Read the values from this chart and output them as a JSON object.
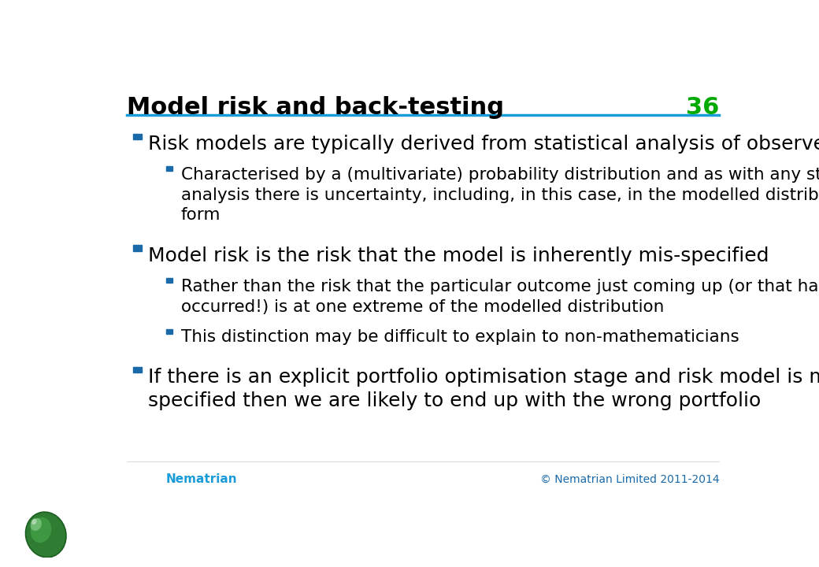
{
  "title": "Model risk and back-testing",
  "slide_number": "36",
  "title_color": "#000000",
  "title_fontsize": 22,
  "slide_number_color": "#00aa00",
  "line_color": "#1a9cd8",
  "background_color": "#ffffff",
  "bullet_color": "#1a6aaa",
  "sub_bullet_color": "#1a6aaa",
  "text_color": "#000000",
  "footer_text": "© Nematrian Limited 2011-2014",
  "footer_color": "#1a6aaa",
  "logo_text": "Nematrian",
  "logo_color": "#1a9cd8",
  "bullets": [
    {
      "level": 1,
      "text": "Risk models are typically derived from statistical analysis of observed data"
    },
    {
      "level": 2,
      "text": "Characterised by a (multivariate) probability distribution and as with any statistical\nanalysis there is uncertainty, including, in this case, in the modelled distributional\nform"
    },
    {
      "level": 1,
      "text": "Model risk is the risk that the model is inherently mis-specified"
    },
    {
      "level": 2,
      "text": "Rather than the risk that the particular outcome just coming up (or that has just\noccurred!) is at one extreme of the modelled distribution"
    },
    {
      "level": 2,
      "text": "This distinction may be difficult to explain to non-mathematicians"
    },
    {
      "level": 1,
      "text": "If there is an explicit portfolio optimisation stage and risk model is mis-\nspecified then we are likely to end up with the wrong portfolio"
    }
  ],
  "font_family": "DejaVu Sans",
  "l1_fontsize": 18,
  "l2_fontsize": 15.5
}
